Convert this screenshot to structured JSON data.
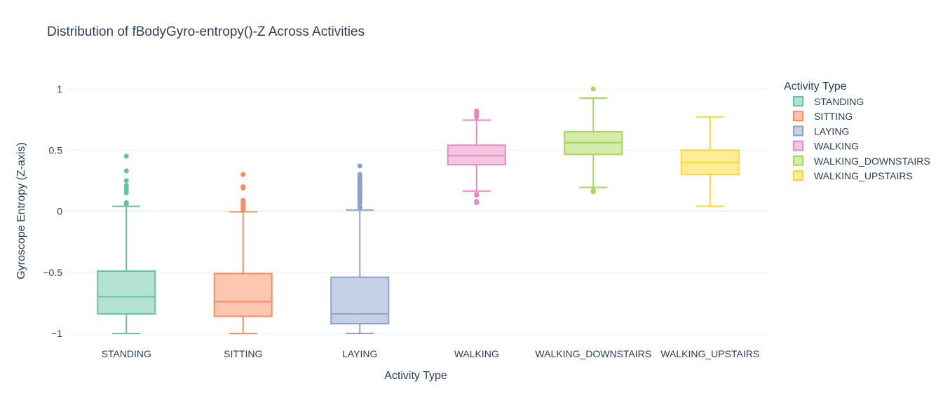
{
  "chart_data": {
    "type": "box",
    "title": "Distribution of fBodyGyro-entropy()-Z Across Activities",
    "xlabel": "Activity Type",
    "ylabel": "Gyroscope Entropy (Z-axis)",
    "ylim": [
      -1.08,
      1.25
    ],
    "yticks": [
      {
        "value": 1,
        "label": "1"
      },
      {
        "value": 0.5,
        "label": "0.5"
      },
      {
        "value": 0,
        "label": "0"
      },
      {
        "value": -0.5,
        "label": "−0.5"
      },
      {
        "value": -1,
        "label": "−1"
      }
    ],
    "grid": true,
    "legend": {
      "title": "Activity Type",
      "placement": "right"
    },
    "categories": [
      "STANDING",
      "SITTING",
      "LAYING",
      "WALKING",
      "WALKING_DOWNSTAIRS",
      "WALKING_UPSTAIRS"
    ],
    "series": [
      {
        "name": "STANDING",
        "color": "#66c2a5",
        "fill": "#b3e1d2",
        "whisker_low": -1.0,
        "q1": -0.84,
        "median": -0.7,
        "q3": -0.49,
        "whisker_high": 0.04,
        "outliers": [
          0.45,
          0.33,
          0.25,
          0.21,
          0.19,
          0.17,
          0.15,
          0.07,
          0.06
        ]
      },
      {
        "name": "SITTING",
        "color": "#fc8d62",
        "fill": "#fdc6b1",
        "whisker_low": -1.0,
        "q1": -0.86,
        "median": -0.74,
        "q3": -0.51,
        "whisker_high": -0.005,
        "outliers": [
          0.3,
          0.2,
          0.19,
          0.09,
          0.08,
          0.07,
          0.06,
          0.05,
          0.04,
          0.03,
          0.02,
          0.01
        ]
      },
      {
        "name": "LAYING",
        "color": "#8da0cb",
        "fill": "#c6d0e5",
        "whisker_low": -1.0,
        "q1": -0.92,
        "median": -0.84,
        "q3": -0.54,
        "whisker_high": 0.01,
        "outliers": [
          0.37,
          0.3,
          0.28,
          0.26,
          0.24,
          0.22,
          0.2,
          0.19,
          0.18,
          0.17,
          0.16,
          0.15,
          0.14,
          0.13,
          0.12,
          0.11,
          0.1,
          0.08,
          0.07,
          0.04,
          0.03
        ]
      },
      {
        "name": "WALKING",
        "color": "#e78ac3",
        "fill": "#f3c5e1",
        "whisker_low": 0.165,
        "q1": 0.38,
        "median": 0.455,
        "q3": 0.54,
        "whisker_high": 0.745,
        "outliers": [
          0.82,
          0.81,
          0.8,
          0.79,
          0.78,
          0.77,
          0.14,
          0.13,
          0.08,
          0.07
        ]
      },
      {
        "name": "WALKING_DOWNSTAIRS",
        "color": "#a6d854",
        "fill": "#d3ecaa",
        "whisker_low": 0.195,
        "q1": 0.465,
        "median": 0.56,
        "q3": 0.65,
        "whisker_high": 0.925,
        "outliers": [
          1.0,
          0.17,
          0.16
        ]
      },
      {
        "name": "WALKING_UPSTAIRS",
        "color": "#ffd92f",
        "fill": "#ffec97",
        "whisker_low": 0.04,
        "q1": 0.3,
        "median": 0.4,
        "q3": 0.5,
        "whisker_high": 0.77,
        "outliers": []
      }
    ]
  }
}
